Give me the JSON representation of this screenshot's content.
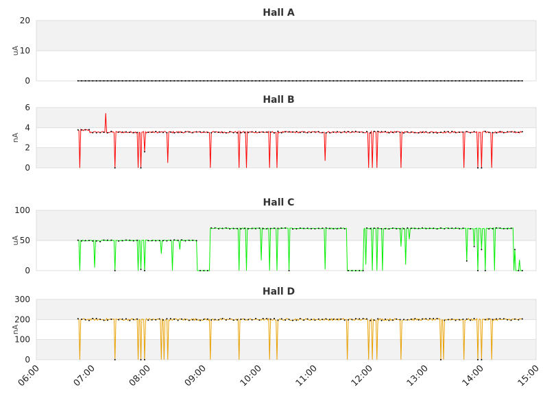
{
  "chart_data": {
    "type": "line",
    "x_axis": {
      "ticks": [
        "06:00",
        "07:00",
        "08:00",
        "09:00",
        "10:00",
        "11:00",
        "12:00",
        "13:00",
        "14:00",
        "15:00"
      ],
      "range_hours": [
        6,
        15
      ]
    },
    "panels": [
      {
        "title": "Hall A",
        "ylabel": "uA",
        "ylim": [
          0,
          20
        ],
        "yticks": [
          0,
          10,
          20
        ],
        "color": "#000000",
        "base": 0,
        "noise": 0,
        "segments": [
          [
            6.75,
            14.75,
            0
          ]
        ],
        "dips": []
      },
      {
        "title": "Hall B",
        "ylabel": "nA",
        "ylim": [
          0,
          6
        ],
        "yticks": [
          0,
          2,
          4,
          6
        ],
        "color": "#ff0000",
        "base": 3.6,
        "noise": 0.08,
        "segments": [
          [
            6.75,
            6.95,
            3.75
          ],
          [
            6.95,
            14.75,
            3.55
          ]
        ],
        "dips": [
          [
            6.78,
            0
          ],
          [
            7.25,
            5.45
          ],
          [
            7.42,
            0
          ],
          [
            7.83,
            0
          ],
          [
            7.88,
            0
          ],
          [
            7.95,
            1.6
          ],
          [
            8.37,
            0.5
          ],
          [
            9.13,
            0
          ],
          [
            9.65,
            0
          ],
          [
            9.78,
            0
          ],
          [
            10.2,
            0
          ],
          [
            10.33,
            0
          ],
          [
            11.2,
            0.7
          ],
          [
            11.98,
            0
          ],
          [
            12.05,
            0
          ],
          [
            12.13,
            0
          ],
          [
            12.57,
            0
          ],
          [
            13.7,
            0
          ],
          [
            13.95,
            0
          ],
          [
            14.02,
            0
          ],
          [
            14.2,
            0
          ]
        ]
      },
      {
        "title": "Hall C",
        "ylabel": "uA",
        "ylim": [
          0,
          100
        ],
        "yticks": [
          0,
          50,
          100
        ],
        "color": "#00ee00",
        "base": 50,
        "noise": 0.8,
        "segments": [
          [
            6.75,
            8.9,
            50
          ],
          [
            8.9,
            9.13,
            0
          ],
          [
            9.13,
            11.6,
            70
          ],
          [
            11.6,
            11.9,
            0
          ],
          [
            11.9,
            14.6,
            70
          ],
          [
            14.6,
            14.75,
            0
          ]
        ],
        "dips": [
          [
            6.78,
            0
          ],
          [
            7.05,
            5
          ],
          [
            7.15,
            48
          ],
          [
            7.42,
            0
          ],
          [
            7.83,
            0
          ],
          [
            7.88,
            2
          ],
          [
            7.95,
            0
          ],
          [
            8.25,
            28
          ],
          [
            8.45,
            0
          ],
          [
            8.58,
            35
          ],
          [
            9.65,
            0
          ],
          [
            9.78,
            0
          ],
          [
            10.05,
            17
          ],
          [
            10.2,
            0
          ],
          [
            10.33,
            0
          ],
          [
            10.55,
            0
          ],
          [
            11.2,
            2
          ],
          [
            11.93,
            10
          ],
          [
            12.05,
            0
          ],
          [
            12.13,
            0
          ],
          [
            12.23,
            0
          ],
          [
            12.57,
            40
          ],
          [
            12.65,
            10
          ],
          [
            12.72,
            52
          ],
          [
            13.75,
            16
          ],
          [
            13.88,
            40
          ],
          [
            13.95,
            0
          ],
          [
            14.02,
            35
          ],
          [
            14.08,
            0
          ],
          [
            14.25,
            0
          ],
          [
            14.62,
            35
          ],
          [
            14.7,
            18
          ]
        ]
      },
      {
        "title": "Hall D",
        "ylabel": "nA",
        "ylim": [
          0,
          300
        ],
        "yticks": [
          0,
          100,
          200,
          300
        ],
        "color": "#e8a000",
        "base": 200,
        "noise": 5,
        "segments": [
          [
            6.75,
            14.75,
            200
          ]
        ],
        "dips": [
          [
            6.78,
            0
          ],
          [
            7.42,
            0
          ],
          [
            7.83,
            0
          ],
          [
            7.88,
            0
          ],
          [
            7.95,
            0
          ],
          [
            8.25,
            0
          ],
          [
            8.3,
            0
          ],
          [
            8.37,
            0
          ],
          [
            9.13,
            0
          ],
          [
            9.65,
            0
          ],
          [
            10.2,
            0
          ],
          [
            10.33,
            0
          ],
          [
            11.6,
            0
          ],
          [
            11.98,
            0
          ],
          [
            12.05,
            0
          ],
          [
            12.13,
            0
          ],
          [
            12.57,
            0
          ],
          [
            13.28,
            0
          ],
          [
            13.33,
            0
          ],
          [
            13.7,
            0
          ],
          [
            13.95,
            0
          ],
          [
            14.02,
            0
          ],
          [
            14.2,
            0
          ]
        ]
      }
    ]
  }
}
